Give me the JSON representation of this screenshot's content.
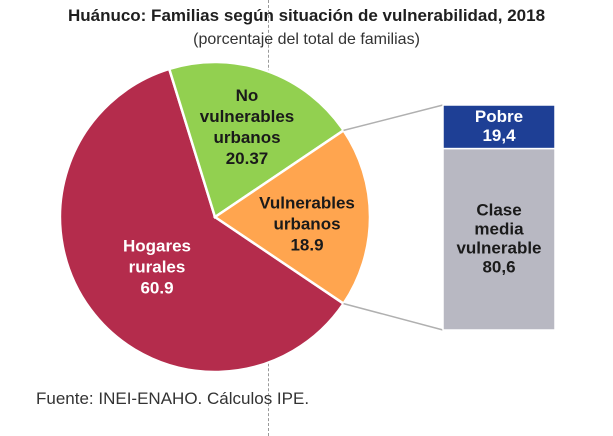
{
  "chart_data": {
    "type": "pie",
    "title": "Huánuco: Familias según situación de vulnerabilidad, 2018",
    "subtitle": "(porcentaje del total de familias)",
    "pie": {
      "slices": [
        {
          "label": [
            "Hogares",
            "rurales"
          ],
          "value_text": "60.9",
          "value": 60.9,
          "color": "#b42c4c"
        },
        {
          "label": [
            "No",
            "vulnerables",
            "urbanos"
          ],
          "value_text": "20.37",
          "value": 20.37,
          "color": "#92d050"
        },
        {
          "label": [
            "Vulnerables",
            "urbanos"
          ],
          "value_text": "18.9",
          "value": 18.9,
          "color": "#ffa54f"
        }
      ]
    },
    "breakdown": {
      "of": "Vulnerables urbanos",
      "segments": [
        {
          "label": [
            "Pobre"
          ],
          "value_text": "19,4",
          "value": 19.4,
          "color": "#1e3f95"
        },
        {
          "label": [
            "Clase",
            "media",
            "vulnerable"
          ],
          "value_text": "80,6",
          "value": 80.6,
          "color": "#b8b8c2"
        }
      ]
    }
  },
  "source": "Fuente: INEI-ENAHO. Cálculos IPE."
}
